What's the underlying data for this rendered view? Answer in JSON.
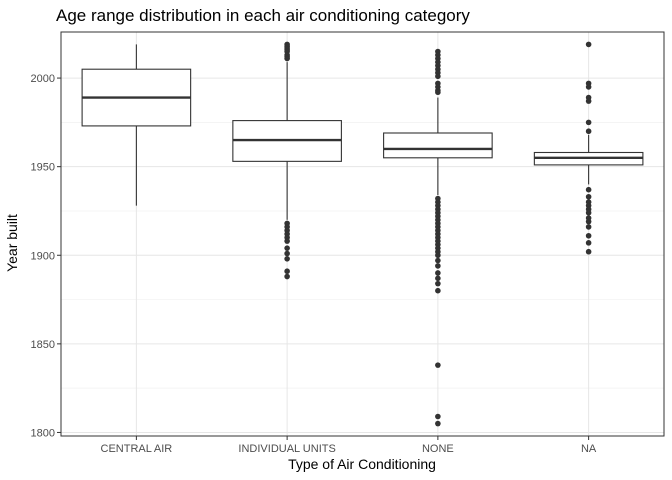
{
  "chart_data": {
    "type": "box",
    "title": "Age range distribution in each air conditioning category",
    "xlabel": "Type of Air Conditioning",
    "ylabel": "Year built",
    "ylim": [
      1798,
      2026
    ],
    "yticks": [
      1800,
      1850,
      1900,
      1950,
      2000
    ],
    "grid": true,
    "categories": [
      "CENTRAL AIR",
      "INDIVIDUAL UNITS",
      "NONE",
      "NA"
    ],
    "boxes": [
      {
        "category": "CENTRAL AIR",
        "whisker_low": 1928,
        "q1": 1973,
        "median": 1989,
        "q3": 2005,
        "whisker_high": 2019,
        "outliers": []
      },
      {
        "category": "INDIVIDUAL UNITS",
        "whisker_low": 1920,
        "q1": 1953,
        "median": 1965,
        "q3": 1976,
        "whisker_high": 2009,
        "outliers": [
          2019,
          2018,
          2017,
          2016,
          2015,
          2013,
          2012,
          2011,
          1918,
          1916,
          1914,
          1912,
          1910,
          1908,
          1904,
          1901,
          1898,
          1891,
          1888
        ]
      },
      {
        "category": "NONE",
        "whisker_low": 1934,
        "q1": 1955,
        "median": 1960,
        "q3": 1969,
        "whisker_high": 1989,
        "outliers": [
          2015,
          2013,
          2011,
          2009,
          2007,
          2005,
          2003,
          2001,
          1997,
          1995,
          1993,
          1992,
          1932,
          1930,
          1928,
          1926,
          1924,
          1922,
          1920,
          1918,
          1916,
          1914,
          1912,
          1910,
          1908,
          1906,
          1904,
          1902,
          1900,
          1897,
          1894,
          1890,
          1887,
          1884,
          1880,
          1838,
          1809,
          1805
        ]
      },
      {
        "category": "NA",
        "whisker_low": 1940,
        "q1": 1951,
        "median": 1955,
        "q3": 1958,
        "whisker_high": 1968,
        "outliers": [
          2019,
          1997,
          1995,
          1989,
          1987,
          1975,
          1970,
          1937,
          1933,
          1930,
          1928,
          1926,
          1924,
          1921,
          1919,
          1916,
          1911,
          1907,
          1902
        ]
      }
    ]
  }
}
